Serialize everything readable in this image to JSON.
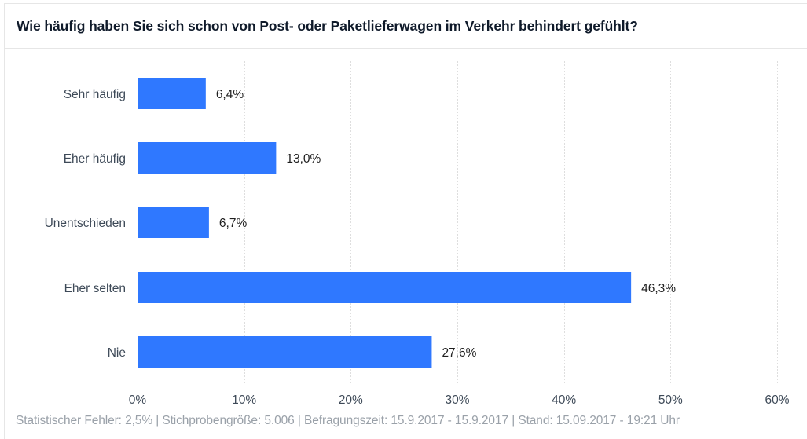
{
  "chart_data": {
    "type": "bar",
    "orientation": "horizontal",
    "title": "Wie häufig haben Sie sich schon von Post- oder Paketlieferwagen im Verkehr behindert gefühlt?",
    "categories": [
      "Sehr häufig",
      "Eher häufig",
      "Unentschieden",
      "Eher selten",
      "Nie"
    ],
    "values": [
      6.4,
      13.0,
      6.7,
      46.3,
      27.6
    ],
    "value_labels": [
      "6,4%",
      "13,0%",
      "6,7%",
      "46,3%",
      "27,6%"
    ],
    "xlim": [
      0,
      60
    ],
    "xticks": [
      0,
      10,
      20,
      30,
      40,
      50,
      60
    ],
    "xtick_labels": [
      "0%",
      "10%",
      "20%",
      "30%",
      "40%",
      "50%",
      "60%"
    ],
    "xlabel": "",
    "ylabel": "",
    "grid": true,
    "bar_color": "#2f78ff",
    "footer": "Statistischer Fehler: 2,5% | Stichprobengröße: 5.006 | Befragungszeit: 15.9.2017 - 15.9.2017 | Stand: 15.09.2017 - 19:21 Uhr"
  }
}
